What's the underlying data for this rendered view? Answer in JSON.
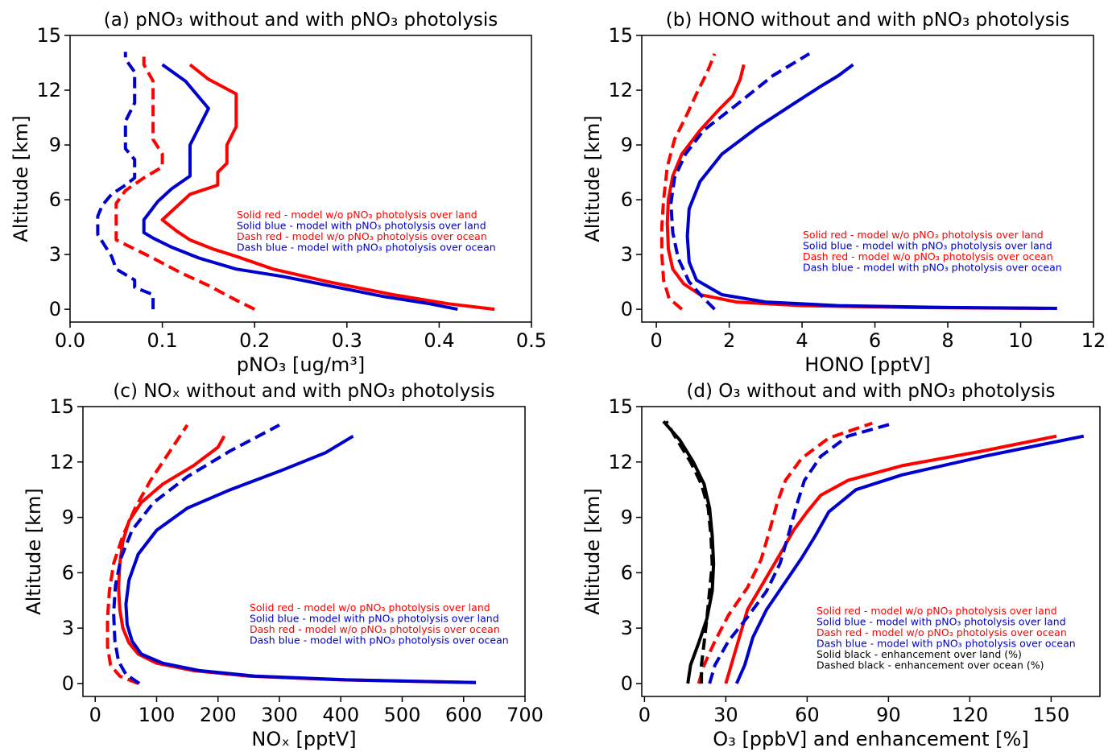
{
  "chart_data": [
    {
      "type": "line",
      "panel": "a",
      "title": "(a) pNO₃ without and with pNO₃ photolysis",
      "xlabel": "pNO₃ [ug/m³]",
      "ylabel": "Altitude [km]",
      "xlim": [
        0,
        0.5
      ],
      "ylim": [
        -0.7,
        15
      ],
      "xticks": [
        0.0,
        0.1,
        0.2,
        0.3,
        0.4,
        0.5
      ],
      "xtick_labels": [
        "0.0",
        "0.1",
        "0.2",
        "0.3",
        "0.4",
        "0.5"
      ],
      "yticks": [
        0,
        3,
        6,
        9,
        12,
        15
      ],
      "ytick_labels": [
        "0",
        "3",
        "6",
        "9",
        "12",
        "15"
      ],
      "legend_position": "center-right",
      "grid": false,
      "series": [
        {
          "name": "Solid red - model w/o pNO₃ photolysis over land",
          "color": "#ff0000",
          "dash": false,
          "x": [
            0.46,
            0.41,
            0.35,
            0.28,
            0.22,
            0.18,
            0.155,
            0.13,
            0.115,
            0.105,
            0.1,
            0.115,
            0.13,
            0.16,
            0.16,
            0.17,
            0.17,
            0.18,
            0.18,
            0.15,
            0.13
          ],
          "y": [
            0.0,
            0.3,
            0.8,
            1.5,
            2.2,
            2.9,
            3.3,
            3.8,
            4.3,
            4.7,
            4.9,
            5.6,
            6.3,
            6.8,
            7.5,
            8.0,
            9.0,
            10.0,
            11.8,
            12.6,
            13.4
          ]
        },
        {
          "name": "Solid blue - model with pNO₃ photolysis over land",
          "color": "#0000cd",
          "dash": false,
          "x": [
            0.42,
            0.39,
            0.34,
            0.29,
            0.23,
            0.18,
            0.14,
            0.11,
            0.09,
            0.08,
            0.08,
            0.095,
            0.11,
            0.13,
            0.13,
            0.13,
            0.15,
            0.125,
            0.1
          ],
          "y": [
            0.0,
            0.3,
            0.7,
            1.2,
            1.8,
            2.2,
            2.8,
            3.4,
            3.9,
            4.2,
            4.9,
            5.9,
            6.6,
            7.3,
            8.0,
            9.0,
            11.0,
            12.5,
            13.4
          ]
        },
        {
          "name": "Dash red - model w/o pNO₃ photolysis over ocean",
          "color": "#ff0000",
          "dash": true,
          "x": [
            0.2,
            0.18,
            0.15,
            0.12,
            0.09,
            0.07,
            0.05,
            0.05,
            0.05,
            0.06,
            0.08,
            0.1,
            0.1,
            0.09,
            0.09,
            0.09,
            0.08,
            0.08
          ],
          "y": [
            0.0,
            0.5,
            1.3,
            2.0,
            2.8,
            3.3,
            3.8,
            4.8,
            5.8,
            6.5,
            7.2,
            7.8,
            8.5,
            9.3,
            10.2,
            12.5,
            13.4,
            14.0
          ]
        },
        {
          "name": "Dash blue - model with pNO₃ photolysis over ocean",
          "color": "#0000cd",
          "dash": true,
          "x": [
            0.09,
            0.09,
            0.07,
            0.07,
            0.05,
            0.045,
            0.04,
            0.03,
            0.03,
            0.035,
            0.045,
            0.06,
            0.07,
            0.07,
            0.06,
            0.06,
            0.07,
            0.07,
            0.06,
            0.06
          ],
          "y": [
            0.0,
            0.8,
            1.2,
            1.6,
            2.2,
            2.9,
            3.3,
            4.1,
            5.1,
            5.7,
            6.3,
            6.8,
            7.2,
            8.2,
            8.8,
            10.3,
            11.3,
            13.0,
            13.7,
            14.1
          ]
        }
      ]
    },
    {
      "type": "line",
      "panel": "b",
      "title": "(b) HONO without and with pNO₃ photolysis",
      "xlabel": "HONO [pptV]",
      "ylabel": "Altitude [km]",
      "xlim": [
        -0.4,
        12
      ],
      "ylim": [
        -0.7,
        15
      ],
      "xticks": [
        0,
        2,
        4,
        6,
        8,
        10,
        12
      ],
      "xtick_labels": [
        "0",
        "2",
        "4",
        "6",
        "8",
        "10",
        "12"
      ],
      "yticks": [
        0,
        3,
        6,
        9,
        12,
        15
      ],
      "ytick_labels": [
        "0",
        "3",
        "6",
        "9",
        "12",
        "15"
      ],
      "legend_position": "lower-right",
      "grid": false,
      "series": [
        {
          "name": "Solid red - model w/o pNO₃ photolysis over land",
          "color": "#ff0000",
          "dash": false,
          "x": [
            10.7,
            7.0,
            4.0,
            2.2,
            1.2,
            0.75,
            0.45,
            0.33,
            0.3,
            0.33,
            0.45,
            0.7,
            1.2,
            1.7,
            2.1,
            2.3,
            2.4
          ],
          "y": [
            0.05,
            0.1,
            0.2,
            0.4,
            0.8,
            1.4,
            2.2,
            3.3,
            4.7,
            6.0,
            7.3,
            8.5,
            9.8,
            10.9,
            11.7,
            12.6,
            13.4
          ]
        },
        {
          "name": "Solid blue - model with pNO₃ photolysis over land",
          "color": "#0000cd",
          "dash": false,
          "x": [
            11.0,
            8.0,
            5.0,
            3.0,
            1.8,
            1.1,
            0.9,
            0.85,
            0.9,
            1.2,
            1.8,
            2.8,
            3.8,
            4.5,
            5.0,
            5.4
          ],
          "y": [
            0.05,
            0.1,
            0.2,
            0.4,
            0.8,
            1.6,
            2.6,
            4.0,
            5.5,
            7.0,
            8.5,
            10.0,
            11.3,
            12.2,
            12.8,
            13.4
          ]
        },
        {
          "name": "Dash red - model w/o pNO₃ photolysis over ocean",
          "color": "#ff0000",
          "dash": true,
          "x": [
            0.7,
            0.35,
            0.2,
            0.15,
            0.15,
            0.2,
            0.3,
            0.5,
            0.8,
            1.1,
            1.4,
            1.6
          ],
          "y": [
            0.0,
            0.6,
            1.6,
            3.0,
            4.5,
            6.0,
            7.8,
            9.3,
            10.5,
            11.8,
            13.0,
            14.0
          ]
        },
        {
          "name": "Dash blue - model with pNO₃ photolysis over ocean",
          "color": "#0000cd",
          "dash": true,
          "x": [
            1.6,
            1.3,
            0.9,
            0.6,
            0.45,
            0.4,
            0.5,
            0.8,
            1.3,
            2.2,
            3.2,
            4.2
          ],
          "y": [
            0.0,
            0.6,
            1.5,
            2.8,
            4.2,
            5.8,
            7.2,
            8.5,
            9.8,
            11.2,
            12.8,
            14.0
          ]
        }
      ]
    },
    {
      "type": "line",
      "panel": "c",
      "title": "(c) NOₓ without and with pNO₃ photolysis",
      "xlabel": "NOₓ [pptV]",
      "ylabel": "Altitude [km]",
      "xlim": [
        -20,
        700
      ],
      "ylim": [
        -0.7,
        15
      ],
      "xticks": [
        0,
        100,
        200,
        300,
        400,
        500,
        600,
        700
      ],
      "xtick_labels": [
        "0",
        "100",
        "200",
        "300",
        "400",
        "500",
        "600",
        "700"
      ],
      "yticks": [
        0,
        3,
        6,
        9,
        12,
        15
      ],
      "ytick_labels": [
        "0",
        "3",
        "6",
        "9",
        "12",
        "15"
      ],
      "legend_position": "lower-right",
      "grid": false,
      "series": [
        {
          "name": "Solid red - model w/o pNO₃ photolysis over land",
          "color": "#ff0000",
          "dash": false,
          "x": [
            620,
            400,
            250,
            160,
            100,
            70,
            55,
            45,
            40,
            38,
            40,
            45,
            55,
            75,
            110,
            160,
            200,
            210
          ],
          "y": [
            0.05,
            0.2,
            0.4,
            0.7,
            1.1,
            1.6,
            2.2,
            3.0,
            4.0,
            5.2,
            6.5,
            7.7,
            8.8,
            9.8,
            10.8,
            11.8,
            12.8,
            13.4
          ]
        },
        {
          "name": "Solid blue - model with pNO₃ photolysis over land",
          "color": "#0000cd",
          "dash": false,
          "x": [
            620,
            410,
            260,
            170,
            110,
            75,
            60,
            52,
            50,
            55,
            70,
            100,
            150,
            220,
            300,
            375,
            420
          ],
          "y": [
            0.05,
            0.2,
            0.4,
            0.7,
            1.1,
            1.6,
            2.3,
            3.2,
            4.3,
            5.6,
            7.0,
            8.3,
            9.5,
            10.5,
            11.5,
            12.5,
            13.4
          ]
        },
        {
          "name": "Dash red - model w/o pNO₃ photolysis over ocean",
          "color": "#ff0000",
          "dash": true,
          "x": [
            70,
            40,
            25,
            20,
            20,
            23,
            30,
            45,
            65,
            90,
            120,
            150
          ],
          "y": [
            0.0,
            0.4,
            1.0,
            2.0,
            3.5,
            5.0,
            6.5,
            8.0,
            9.5,
            11.0,
            12.5,
            14.0
          ]
        },
        {
          "name": "Dash blue - model with pNO₃ photolysis over ocean",
          "color": "#0000cd",
          "dash": true,
          "x": [
            72,
            50,
            38,
            32,
            30,
            33,
            42,
            60,
            95,
            150,
            220,
            300
          ],
          "y": [
            0.0,
            0.5,
            1.2,
            2.3,
            3.8,
            5.3,
            6.8,
            8.3,
            9.8,
            11.2,
            12.6,
            14.0
          ]
        }
      ]
    },
    {
      "type": "line",
      "panel": "d",
      "title": "(d) O₃ without and with pNO₃ photolysis",
      "xlabel": "O₃ [ppbV] and enhancement [%]",
      "ylabel": "Altitude [km]",
      "xlim": [
        -1,
        168
      ],
      "ylim": [
        -0.7,
        15
      ],
      "xticks": [
        0,
        30,
        60,
        90,
        120,
        150
      ],
      "xtick_labels": [
        "0",
        "30",
        "60",
        "90",
        "120",
        "150"
      ],
      "yticks": [
        0,
        3,
        6,
        9,
        12,
        15
      ],
      "ytick_labels": [
        "0",
        "3",
        "6",
        "9",
        "12",
        "15"
      ],
      "legend_position": "lower-right",
      "grid": false,
      "series": [
        {
          "name": "Solid red - model w/o pNO₃ photolysis over land",
          "color": "#ff0000",
          "dash": false,
          "x": [
            30,
            32,
            35,
            38,
            44,
            50,
            55,
            60,
            65,
            75,
            95,
            125,
            152
          ],
          "y": [
            0.0,
            1.0,
            2.5,
            4.0,
            5.5,
            7.0,
            8.3,
            9.3,
            10.2,
            11.0,
            11.8,
            12.6,
            13.4
          ]
        },
        {
          "name": "Solid blue - model with pNO₃ photolysis over land",
          "color": "#0000cd",
          "dash": false,
          "x": [
            34,
            37,
            40,
            45,
            52,
            58,
            63,
            68,
            78,
            95,
            125,
            162
          ],
          "y": [
            0.0,
            1.0,
            2.5,
            4.0,
            5.5,
            6.8,
            8.0,
            9.3,
            10.5,
            11.3,
            12.3,
            13.4
          ]
        },
        {
          "name": "Dash red - model w/o pNO₃ photolysis over ocean",
          "color": "#ff0000",
          "dash": true,
          "x": [
            20,
            22,
            26,
            31,
            38,
            43,
            46,
            49,
            52,
            58,
            68,
            84
          ],
          "y": [
            0.0,
            1.0,
            2.3,
            3.7,
            5.2,
            6.7,
            8.2,
            9.8,
            11.0,
            12.2,
            13.3,
            14.1
          ]
        },
        {
          "name": "Dash blue - model with pNO₃ photolysis over ocean",
          "color": "#0000cd",
          "dash": true,
          "x": [
            24,
            26,
            31,
            38,
            45,
            50,
            53,
            56,
            59,
            65,
            75,
            92
          ],
          "y": [
            0.0,
            1.0,
            2.3,
            3.6,
            5.0,
            6.5,
            8.0,
            9.6,
            11.0,
            12.3,
            13.4,
            14.1
          ]
        },
        {
          "name": "Solid black - enhancement over land (%)",
          "color": "#000000",
          "dash": false,
          "x": [
            16,
            17,
            20,
            23,
            25,
            25.5,
            25,
            24,
            22,
            18,
            13,
            7
          ],
          "y": [
            0.0,
            1.0,
            2.2,
            3.5,
            5.0,
            6.5,
            8.0,
            9.5,
            10.8,
            12.0,
            13.2,
            14.2
          ]
        },
        {
          "name": "Dashed black - enhancement over ocean (%)",
          "color": "#000000",
          "dash": true,
          "x": [
            21,
            21,
            22,
            23,
            24,
            25,
            24.5,
            23.5,
            21,
            17,
            12,
            8
          ],
          "y": [
            0.0,
            1.0,
            2.2,
            3.5,
            5.0,
            6.5,
            8.0,
            9.5,
            10.8,
            12.0,
            13.2,
            14.2
          ]
        }
      ]
    }
  ]
}
